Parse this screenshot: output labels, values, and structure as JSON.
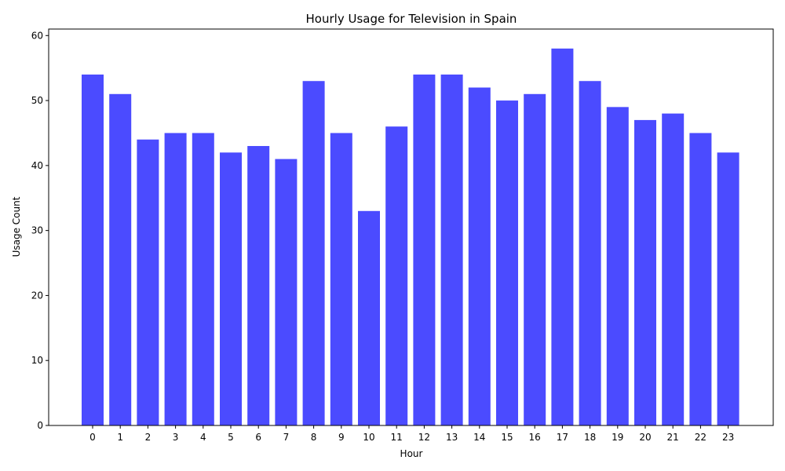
{
  "chart_data": {
    "type": "bar",
    "title": "Hourly Usage for Television in Spain",
    "xlabel": "Hour",
    "ylabel": "Usage Count",
    "categories": [
      "0",
      "1",
      "2",
      "3",
      "4",
      "5",
      "6",
      "7",
      "8",
      "9",
      "10",
      "11",
      "12",
      "13",
      "14",
      "15",
      "16",
      "17",
      "18",
      "19",
      "20",
      "21",
      "22",
      "23"
    ],
    "values": [
      54,
      51,
      44,
      45,
      45,
      42,
      43,
      41,
      53,
      45,
      33,
      46,
      54,
      54,
      52,
      50,
      51,
      58,
      53,
      49,
      47,
      48,
      45,
      42
    ],
    "ylim": [
      0,
      61
    ],
    "yticks": [
      0,
      10,
      20,
      30,
      40,
      50,
      60
    ],
    "bar_color": "#4b4bff",
    "grid": false,
    "legend": "none"
  }
}
